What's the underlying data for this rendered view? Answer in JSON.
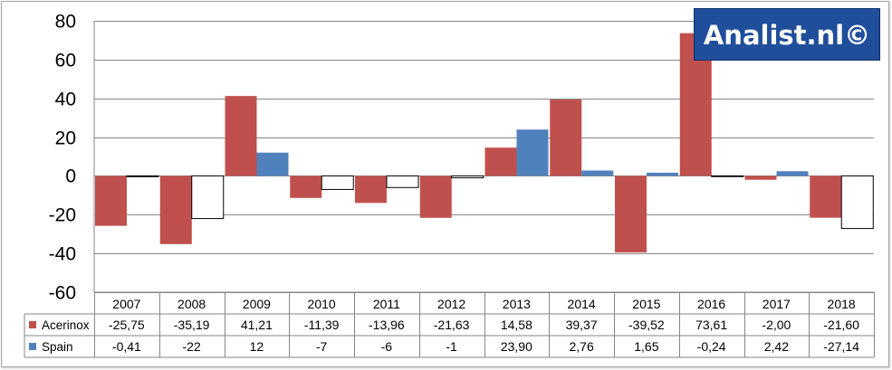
{
  "chart_data": {
    "type": "bar",
    "categories": [
      "2007",
      "2008",
      "2009",
      "2010",
      "2011",
      "2012",
      "2013",
      "2014",
      "2015",
      "2016",
      "2017",
      "2018"
    ],
    "series": [
      {
        "name": "Acerinox",
        "color": "#c0504d",
        "values": [
          -25.75,
          -35.19,
          41.21,
          -11.39,
          -13.96,
          -21.63,
          14.58,
          39.37,
          -39.52,
          73.61,
          -2.0,
          -21.6
        ],
        "table_labels": [
          "-25,75",
          "-35,19",
          "41,21",
          "-11,39",
          "-13,96",
          "-21,63",
          "14,58",
          "39,37",
          "-39,52",
          "73,61",
          "-2,00",
          "-21,60"
        ]
      },
      {
        "name": "Spain",
        "color": "#4f81bd",
        "negative_color": "#ffffff",
        "values": [
          -0.41,
          -22,
          12,
          -7,
          -6,
          -1,
          23.9,
          2.76,
          1.65,
          -0.24,
          2.42,
          -27.14
        ],
        "table_labels": [
          "-0,41",
          "-22",
          "12",
          "-7",
          "-6",
          "-1",
          "23,90",
          "2,76",
          "1,65",
          "-0,24",
          "2,42",
          "-27,14"
        ]
      }
    ],
    "y_ticks": [
      80,
      60,
      40,
      20,
      0,
      -20,
      -40,
      -60
    ],
    "ylim": [
      -60,
      80
    ],
    "grid": true,
    "legend": "data-table"
  },
  "watermark": "Analist.nl©"
}
